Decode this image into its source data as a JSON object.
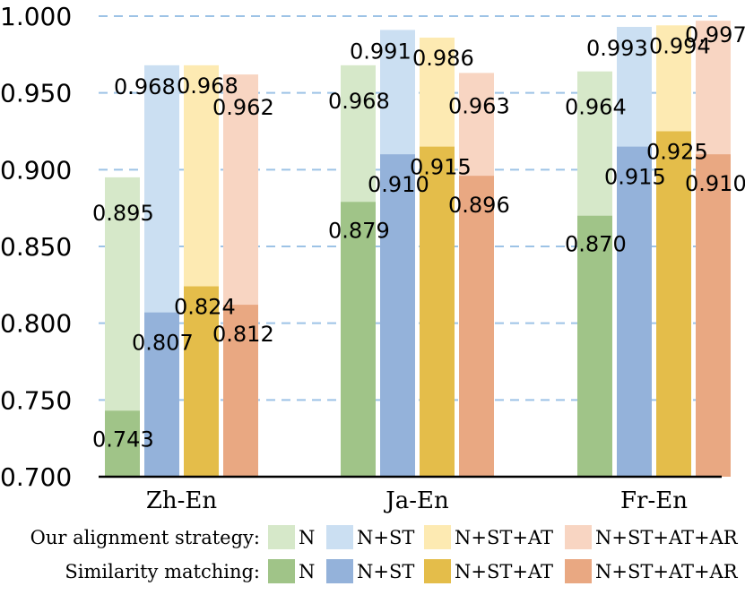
{
  "chart_data": {
    "type": "bar",
    "title": "",
    "xlabel": "",
    "ylabel": "",
    "ylim": [
      0.7,
      1.0
    ],
    "yticks": [
      0.7,
      0.75,
      0.8,
      0.85,
      0.9,
      0.95,
      1.0
    ],
    "ytick_labels": [
      "0.700",
      "0.750",
      "0.800",
      "0.850",
      "0.900",
      "0.950",
      "1.000"
    ],
    "grid": true,
    "categories": [
      "Zh-En",
      "Ja-En",
      "Fr-En"
    ],
    "series_names": [
      "N",
      "N+ST",
      "N+ST+AT",
      "N+ST+AT+AR"
    ],
    "groups": [
      {
        "label": "Our alignment strategy",
        "series": [
          {
            "name": "N",
            "color": "#d6e8c9",
            "values": [
              0.895,
              0.968,
              0.964
            ],
            "labels": [
              "0.895",
              "0.968",
              "0.964"
            ]
          },
          {
            "name": "N+ST",
            "color": "#cbdff2",
            "values": [
              0.968,
              0.991,
              0.993
            ],
            "labels": [
              "0.968",
              "0.991",
              "0.993"
            ]
          },
          {
            "name": "N+ST+AT",
            "color": "#fdeab2",
            "values": [
              0.968,
              0.986,
              0.994
            ],
            "labels": [
              "0.968",
              "0.986",
              "0.994"
            ]
          },
          {
            "name": "N+ST+AT+AR",
            "color": "#f8d5c2",
            "values": [
              0.962,
              0.963,
              0.997
            ],
            "labels": [
              "0.962",
              "0.963",
              "0.997"
            ]
          }
        ]
      },
      {
        "label": "Similarity matching",
        "series": [
          {
            "name": "N",
            "color": "#a0c488",
            "values": [
              0.743,
              0.879,
              0.87
            ],
            "labels": [
              "0.743",
              "0.879",
              "0.870"
            ]
          },
          {
            "name": "N+ST",
            "color": "#94b2da",
            "values": [
              0.807,
              0.91,
              0.915
            ],
            "labels": [
              "0.807",
              "0.910",
              "0.915"
            ]
          },
          {
            "name": "N+ST+AT",
            "color": "#e4bd4a",
            "values": [
              0.824,
              0.915,
              0.925
            ],
            "labels": [
              "0.824",
              "0.915",
              "0.925"
            ]
          },
          {
            "name": "N+ST+AT+AR",
            "color": "#e9a882",
            "values": [
              0.812,
              0.896,
              0.91
            ],
            "labels": [
              "0.812",
              "0.896",
              "0.910"
            ]
          }
        ]
      }
    ],
    "legend": {
      "placement": "bottom",
      "rows": [
        {
          "label": "Our alignment strategy:",
          "items": [
            "N",
            "N+ST",
            "N+ST+AT",
            "N+ST+AT+AR"
          ]
        },
        {
          "label": "Similarity matching:",
          "items": [
            "N",
            "N+ST",
            "N+ST+AT",
            "N+ST+AT+AR"
          ]
        }
      ]
    }
  }
}
